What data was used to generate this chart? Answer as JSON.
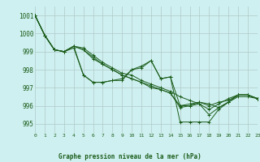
{
  "title": "Graphe pression niveau de la mer (hPa)",
  "bg_color": "#cff0f0",
  "grid_color": "#b0c8c8",
  "line_color": "#1a5c1a",
  "xlim": [
    0,
    23
  ],
  "ylim": [
    994.5,
    1001.5
  ],
  "yticks": [
    995,
    996,
    997,
    998,
    999,
    1000,
    1001
  ],
  "xticks": [
    0,
    1,
    2,
    3,
    4,
    5,
    6,
    7,
    8,
    9,
    10,
    11,
    12,
    13,
    14,
    15,
    16,
    17,
    18,
    19,
    20,
    21,
    22,
    23
  ],
  "series": [
    [
      1001.0,
      999.9,
      999.1,
      999.0,
      999.2,
      997.7,
      997.3,
      997.3,
      997.4,
      997.4,
      998.0,
      998.1,
      998.5,
      997.5,
      997.6,
      995.1,
      995.1,
      995.1,
      995.1,
      995.8,
      996.2,
      996.5,
      996.5,
      996.4
    ],
    [
      1001.0,
      999.9,
      999.1,
      999.0,
      999.3,
      999.2,
      998.8,
      998.4,
      998.1,
      997.8,
      997.7,
      997.4,
      997.2,
      997.0,
      996.8,
      996.5,
      996.3,
      996.1,
      995.8,
      996.1,
      996.4,
      996.6,
      996.6,
      996.4
    ],
    [
      1001.0,
      999.9,
      999.1,
      999.0,
      999.3,
      999.1,
      998.7,
      998.3,
      998.0,
      997.7,
      997.5,
      997.3,
      997.1,
      996.9,
      996.7,
      995.9,
      996.0,
      996.1,
      995.5,
      995.9,
      996.2,
      996.6,
      996.6,
      996.4
    ],
    [
      1001.0,
      999.9,
      999.1,
      999.0,
      999.3,
      999.1,
      998.6,
      998.3,
      998.0,
      997.7,
      997.5,
      997.3,
      997.0,
      996.9,
      996.7,
      996.0,
      996.1,
      996.2,
      996.1,
      995.9,
      996.2,
      996.6,
      996.6,
      996.4
    ],
    [
      1001.0,
      999.9,
      999.1,
      999.0,
      999.3,
      997.7,
      997.3,
      997.3,
      997.4,
      997.5,
      998.0,
      998.2,
      998.5,
      997.5,
      997.6,
      996.0,
      996.0,
      996.2,
      996.0,
      996.2,
      996.3,
      996.6,
      996.6,
      996.4
    ]
  ]
}
